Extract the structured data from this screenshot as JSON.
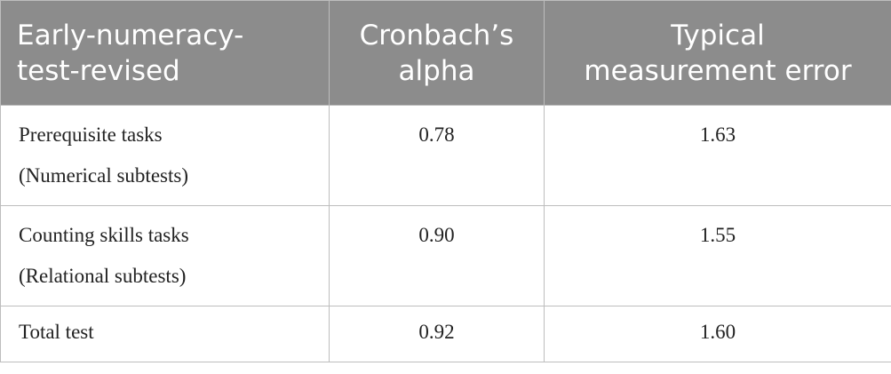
{
  "table": {
    "header": [
      [
        "Early-numeracy-",
        "test-revised"
      ],
      [
        "Cronbach’s",
        "alpha"
      ],
      [
        "Typical",
        "measurement error"
      ]
    ],
    "rows": [
      [
        [
          "Prerequisite tasks",
          "(Numerical subtests)"
        ],
        "0.78",
        "1.63"
      ],
      [
        [
          "Counting skills tasks",
          "(Relational subtests)"
        ],
        "0.90",
        "1.55"
      ],
      [
        [
          "Total test"
        ],
        "0.92",
        "1.60"
      ]
    ]
  }
}
